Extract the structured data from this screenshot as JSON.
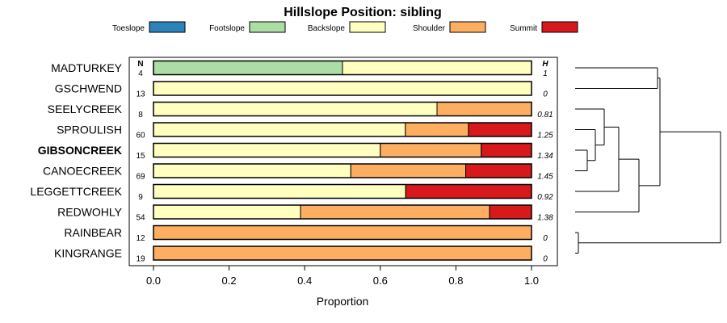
{
  "chart_data": {
    "type": "bar",
    "title": "Hillslope Position: sibling",
    "xlabel": "Proportion",
    "ylabel": "",
    "xlim": [
      0,
      1
    ],
    "x_ticks": [
      "0.0",
      "0.2",
      "0.4",
      "0.6",
      "0.8",
      "1.0"
    ],
    "n_header": "N",
    "h_header": "H",
    "highlighted": "GIBSONCREEK",
    "legend_position": "top",
    "legend": [
      {
        "name": "Toeslope",
        "color": "#2B83BA"
      },
      {
        "name": "Footslope",
        "color": "#ABDDA4"
      },
      {
        "name": "Backslope",
        "color": "#FFFFBF"
      },
      {
        "name": "Shoulder",
        "color": "#FDAE61"
      },
      {
        "name": "Summit",
        "color": "#D7191C"
      }
    ],
    "categories": [
      "MADTURKEY",
      "GSCHWEND",
      "SEELYCREEK",
      "SPROULISH",
      "GIBSONCREEK",
      "CANOECREEK",
      "LEGGETTCREEK",
      "REDWOHLY",
      "RAINBEAR",
      "KINGRANGE"
    ],
    "n": [
      "4",
      "13",
      "8",
      "60",
      "15",
      "69",
      "9",
      "54",
      "12",
      "19"
    ],
    "h": [
      "1",
      "0",
      "0.81",
      "1.25",
      "1.34",
      "1.45",
      "0.92",
      "1.38",
      "0",
      "0"
    ],
    "series": [
      {
        "name": "Toeslope",
        "values": [
          0,
          0,
          0,
          0,
          0,
          0,
          0,
          0,
          0,
          0
        ]
      },
      {
        "name": "Footslope",
        "values": [
          0.5,
          0,
          0,
          0,
          0,
          0,
          0,
          0,
          0,
          0
        ]
      },
      {
        "name": "Backslope",
        "values": [
          0.5,
          1,
          0.75,
          0.667,
          0.6,
          0.522,
          0.667,
          0.389,
          0,
          0
        ]
      },
      {
        "name": "Shoulder",
        "values": [
          0,
          0,
          0.25,
          0.167,
          0.267,
          0.304,
          0,
          0.5,
          1,
          1
        ]
      },
      {
        "name": "Summit",
        "values": [
          0,
          0,
          0,
          0.167,
          0.133,
          0.174,
          0.333,
          0.111,
          0,
          0
        ]
      }
    ]
  }
}
